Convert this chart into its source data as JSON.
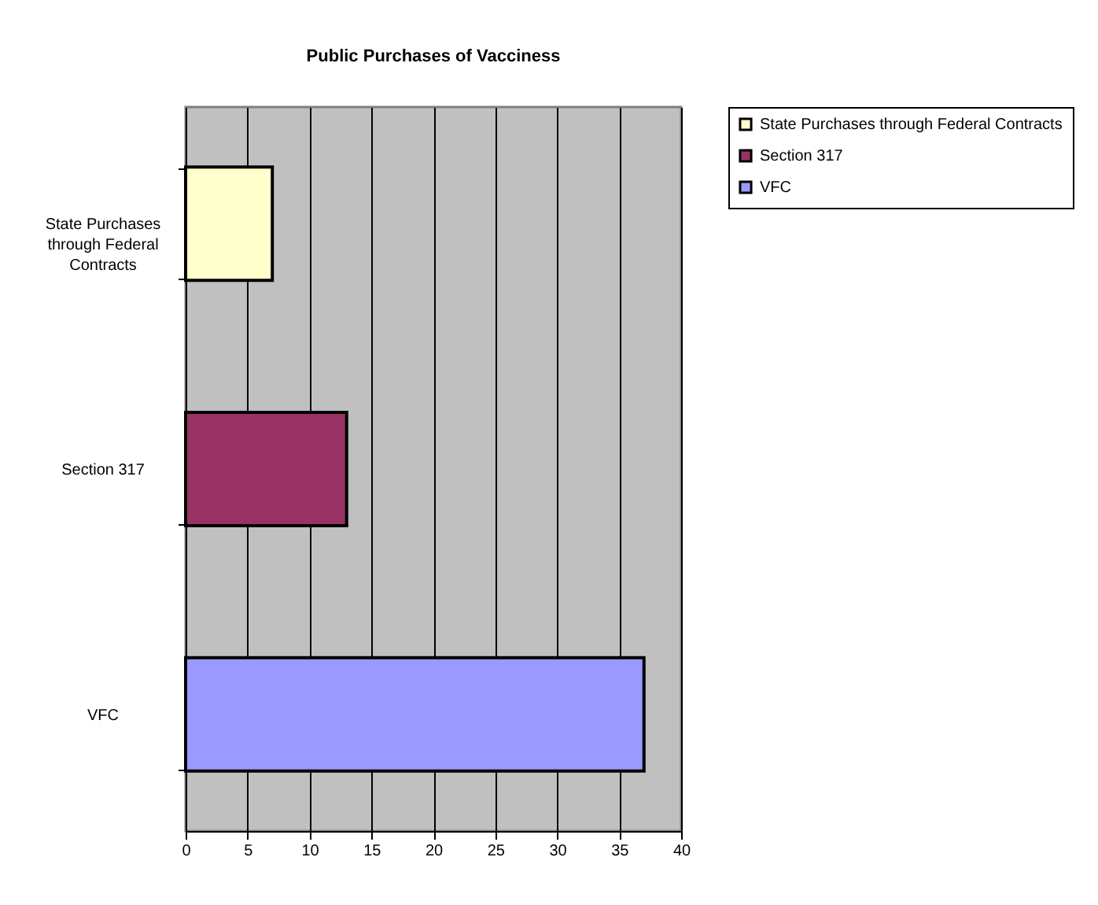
{
  "chart_data": {
    "type": "bar",
    "orientation": "horizontal",
    "title": "Public Purchases of Vacciness",
    "categories": [
      "State Purchases through Federal Contracts",
      "Section 317",
      "VFC"
    ],
    "series": [
      {
        "name": "State Purchases through Federal Contracts",
        "color": "#ffffcc",
        "values": [
          7,
          null,
          null
        ]
      },
      {
        "name": "Section 317",
        "color": "#993366",
        "values": [
          null,
          13,
          null
        ]
      },
      {
        "name": "VFC",
        "color": "#9999ff",
        "values": [
          null,
          null,
          37
        ]
      }
    ],
    "xlim": [
      0,
      40
    ],
    "xticks": [
      0,
      5,
      10,
      15,
      20,
      25,
      30,
      35,
      40
    ],
    "grid": "x",
    "legend": "right"
  }
}
